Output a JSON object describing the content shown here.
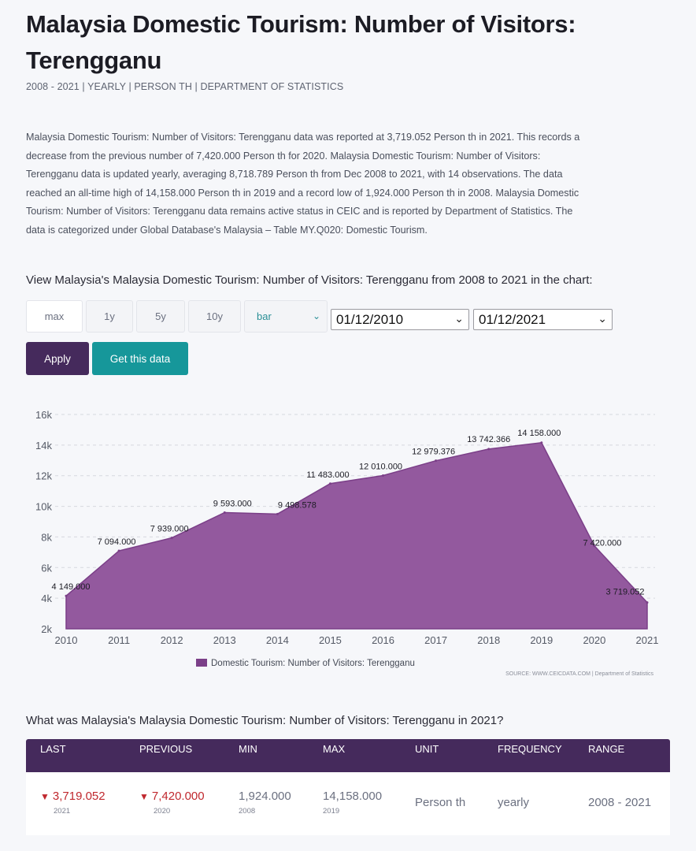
{
  "page": {
    "title": "Malaysia Domestic Tourism: Number of Visitors: Terengganu",
    "subtitle": "2008 - 2021 | YEARLY | PERSON TH | DEPARTMENT OF STATISTICS",
    "description": "Malaysia Domestic Tourism: Number of Visitors: Terengganu data was reported at 3,719.052 Person th in 2021. This records a decrease from the previous number of 7,420.000 Person th for 2020. Malaysia Domestic Tourism: Number of Visitors: Terengganu data is updated yearly, averaging 8,718.789 Person th from Dec 2008 to 2021, with 14 observations. The data reached an all-time high of 14,158.000 Person th in 2019 and a record low of 1,924.000 Person th in 2008. Malaysia Domestic Tourism: Number of Visitors: Terengganu data remains active status in CEIC and is reported by Department of Statistics. The data is categorized under Global Database's Malaysia – Table MY.Q020: Domestic Tourism.",
    "chart_heading": "View Malaysia's Malaysia Domestic Tourism: Number of Visitors: Terengganu from 2008 to 2021 in the chart:"
  },
  "controls": {
    "range_buttons": [
      "max",
      "1y",
      "5y",
      "10y"
    ],
    "chart_type": "bar",
    "start_date": "01/12/2010",
    "end_date": "01/12/2021",
    "apply_label": "Apply",
    "get_data_label": "Get this data"
  },
  "chart_data": {
    "type": "area",
    "x": [
      "2010",
      "2011",
      "2012",
      "2013",
      "2014",
      "2015",
      "2016",
      "2017",
      "2018",
      "2019",
      "2020",
      "2021"
    ],
    "series": [
      {
        "name": "Domestic Tourism: Number of Visitors: Terengganu",
        "values": [
          4149.0,
          7094.0,
          7939.0,
          9593.0,
          9498.578,
          11483.0,
          12010.0,
          12979.376,
          13742.366,
          14158.0,
          7420.0,
          3719.052
        ]
      }
    ],
    "data_labels": [
      "4 149.000",
      "7 094.000",
      "7 939.000",
      "9 593.000",
      "9 498.578",
      "11 483.000",
      "12 010.000",
      "12 979.376",
      "13 742.366",
      "14 158.000",
      "7 420.000",
      "3 719.052"
    ],
    "y_ticks": [
      "2k",
      "4k",
      "6k",
      "8k",
      "10k",
      "12k",
      "14k",
      "16k"
    ],
    "ylim": [
      2000,
      16000
    ],
    "grid": true,
    "legend_position": "bottom-center",
    "source": "SOURCE: WWW.CEICDATA.COM | Department of Statistics",
    "color": "#8e5699"
  },
  "table": {
    "question": "What was Malaysia's Malaysia Domestic Tourism: Number of Visitors: Terengganu in 2021?",
    "headers": [
      "LAST",
      "PREVIOUS",
      "MIN",
      "MAX",
      "UNIT",
      "FREQUENCY",
      "RANGE"
    ],
    "last": {
      "value": "3,719.052",
      "year": "2021"
    },
    "previous": {
      "value": "7,420.000",
      "year": "2020"
    },
    "min": {
      "value": "1,924.000",
      "year": "2008"
    },
    "max": {
      "value": "14,158.000",
      "year": "2019"
    },
    "unit": "Person th",
    "frequency": "yearly",
    "range": "2008 - 2021"
  }
}
